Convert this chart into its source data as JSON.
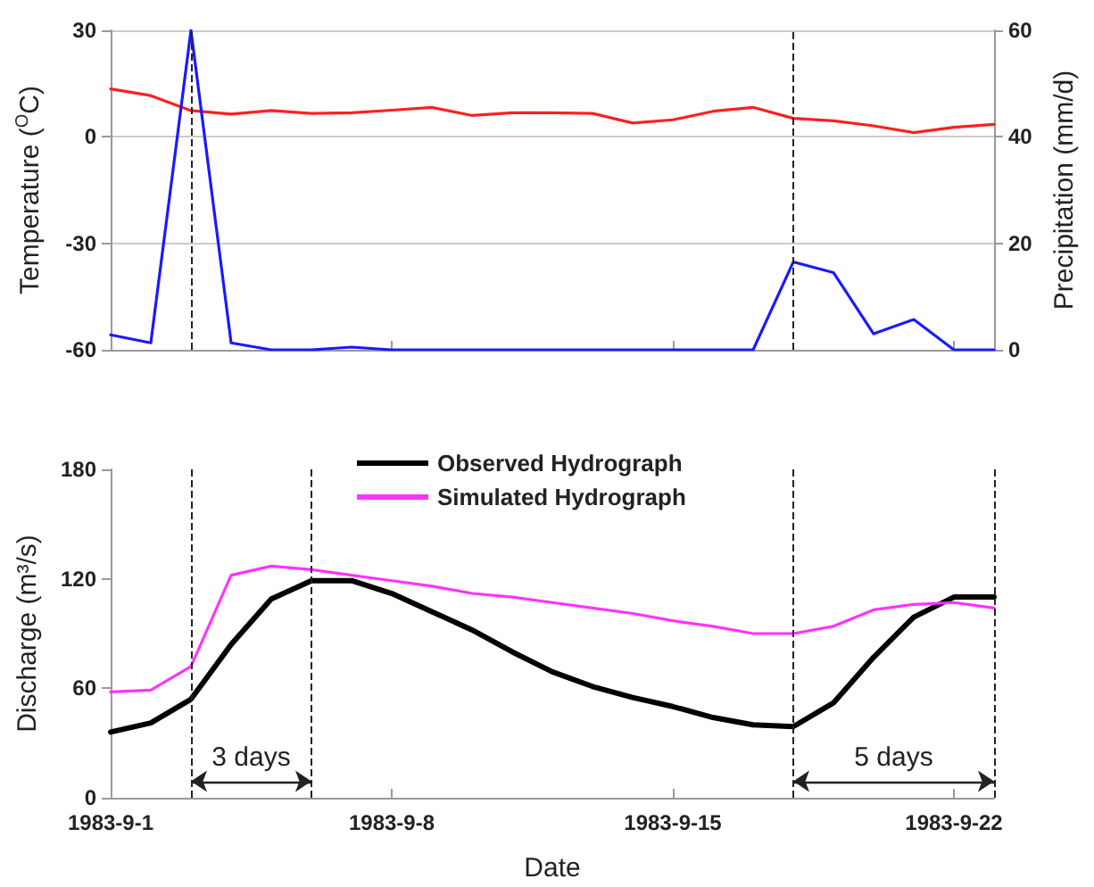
{
  "chart_data": [
    {
      "type": "line",
      "ylabel": "Temperature ($^{O}$C)",
      "y2label": "Precipitation (mm/d)",
      "x": [
        "1983-09-01",
        "1983-09-02",
        "1983-09-03",
        "1983-09-04",
        "1983-09-05",
        "1983-09-06",
        "1983-09-07",
        "1983-09-08",
        "1983-09-09",
        "1983-09-10",
        "1983-09-11",
        "1983-09-12",
        "1983-09-13",
        "1983-09-14",
        "1983-09-15",
        "1983-09-16",
        "1983-09-17",
        "1983-09-18",
        "1983-09-19",
        "1983-09-20",
        "1983-09-21",
        "1983-09-22",
        "1983-09-23"
      ],
      "series": [
        {
          "color": "#ff2020",
          "values": [
            13.5,
            11.6,
            7.4,
            6.4,
            7.4,
            6.6,
            6.8,
            7.5,
            8.3,
            6.0,
            6.8,
            6.8,
            6.6,
            3.9,
            4.8,
            7.2,
            8.3,
            5.2,
            4.5,
            3.1,
            1.2,
            2.7,
            3.5
          ]
        },
        {
          "color": "#1a1aff",
          "axis": "y2",
          "values": [
            2.8,
            1.3,
            60,
            1.3,
            0,
            0,
            0.5,
            0,
            0,
            0,
            0,
            0,
            0,
            0,
            0,
            0,
            0,
            16.5,
            14.5,
            3,
            5.7,
            0,
            0
          ]
        }
      ],
      "xlim": [
        "1983-09-01",
        "1983-09-23"
      ],
      "xticks": [
        {
          "value": "1983-09-01",
          "label": null
        },
        {
          "value": "1983-09-08",
          "label": null
        },
        {
          "value": "1983-09-15",
          "label": null
        },
        {
          "value": "1983-09-22",
          "label": null
        }
      ],
      "ylim": [
        -60,
        30
      ],
      "yticks": [
        -60,
        -30,
        0,
        30
      ],
      "y2lim": [
        0,
        60
      ],
      "y2ticks": [
        0,
        20,
        40,
        60
      ],
      "grid": "y",
      "tick_labels": "y",
      "marker": "none",
      "line_style": "solid",
      "legend": false,
      "ref_lines": [
        {
          "axis": "x",
          "value": "1983-09-03"
        },
        {
          "axis": "x",
          "value": "1983-09-18"
        }
      ]
    },
    {
      "type": "line",
      "ylabel": "Discharge (m³/s)",
      "xlabel": "Date",
      "x": [
        "1983-09-01",
        "1983-09-02",
        "1983-09-03",
        "1983-09-04",
        "1983-09-05",
        "1983-09-06",
        "1983-09-07",
        "1983-09-08",
        "1983-09-09",
        "1983-09-10",
        "1983-09-11",
        "1983-09-12",
        "1983-09-13",
        "1983-09-14",
        "1983-09-15",
        "1983-09-16",
        "1983-09-17",
        "1983-09-18",
        "1983-09-19",
        "1983-09-20",
        "1983-09-21",
        "1983-09-22",
        "1983-09-23"
      ],
      "series": [
        {
          "name": "Observed Hydrograph",
          "color": "#000000",
          "values": [
            36,
            41,
            54,
            84,
            109,
            119,
            119,
            112,
            102,
            92,
            80,
            69,
            61,
            55,
            50,
            44,
            40,
            39,
            52,
            77,
            99,
            110,
            110
          ]
        },
        {
          "name": "Simulated Hydrograph",
          "color": "#ff33ff",
          "values": [
            58,
            59,
            72,
            122,
            127,
            125,
            122,
            119,
            116,
            112,
            110,
            107,
            104,
            101,
            97,
            94,
            90,
            90,
            94,
            103,
            106,
            107,
            104
          ]
        }
      ],
      "xlim": [
        "1983-09-01",
        "1983-09-23"
      ],
      "xticks": [
        {
          "value": "1983-09-01",
          "label": "1983-9-1"
        },
        {
          "value": "1983-09-08",
          "label": "1983-9-8"
        },
        {
          "value": "1983-09-15",
          "label": "1983-9-15"
        },
        {
          "value": "1983-09-22",
          "label": "1983-9-22"
        }
      ],
      "ylim": [
        0,
        180
      ],
      "yticks": [
        0,
        60,
        120,
        180
      ],
      "grid": false,
      "marker": "none",
      "line_style": "solid",
      "legend": "top",
      "ref_lines": [
        {
          "axis": "x",
          "value": "1983-09-03"
        },
        {
          "axis": "x",
          "value": "1983-09-06"
        },
        {
          "axis": "x",
          "value": "1983-09-18"
        },
        {
          "axis": "x",
          "value": "1983-09-23"
        }
      ],
      "annotations": [
        "3 days",
        "5 days"
      ]
    }
  ]
}
